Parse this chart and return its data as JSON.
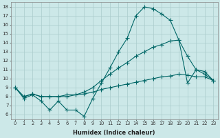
{
  "xlabel": "Humidex (Indice chaleur)",
  "bg_color": "#cce8e8",
  "line_color": "#006666",
  "grid_color": "#aacccc",
  "xlim": [
    -0.5,
    23.5
  ],
  "ylim": [
    5.5,
    18.5
  ],
  "yticks": [
    6,
    7,
    8,
    9,
    10,
    11,
    12,
    13,
    14,
    15,
    16,
    17,
    18
  ],
  "xticks": [
    0,
    1,
    2,
    3,
    4,
    5,
    6,
    7,
    8,
    9,
    10,
    11,
    12,
    13,
    14,
    15,
    16,
    17,
    18,
    19,
    20,
    21,
    22,
    23
  ],
  "s1": [
    9.0,
    7.8,
    8.2,
    7.5,
    6.5,
    7.5,
    6.5,
    6.5,
    5.8,
    7.8,
    9.5,
    11.2,
    13.0,
    14.5,
    17.0,
    18.0,
    17.8,
    17.2,
    16.5,
    14.3,
    9.5,
    11.0,
    10.5,
    9.8
  ],
  "s2": [
    9.0,
    8.0,
    8.3,
    8.0,
    8.0,
    8.0,
    8.2,
    8.2,
    8.5,
    9.0,
    9.8,
    10.5,
    11.2,
    11.8,
    12.5,
    13.0,
    13.5,
    13.8,
    14.2,
    14.3,
    12.5,
    11.0,
    10.8,
    9.8
  ],
  "s3": [
    9.0,
    8.0,
    8.3,
    8.0,
    8.0,
    8.0,
    8.0,
    8.2,
    8.3,
    8.5,
    8.8,
    9.0,
    9.2,
    9.4,
    9.6,
    9.8,
    10.0,
    10.2,
    10.3,
    10.5,
    10.4,
    10.2,
    10.2,
    9.8
  ],
  "lw": 0.8,
  "ms": 2.5
}
